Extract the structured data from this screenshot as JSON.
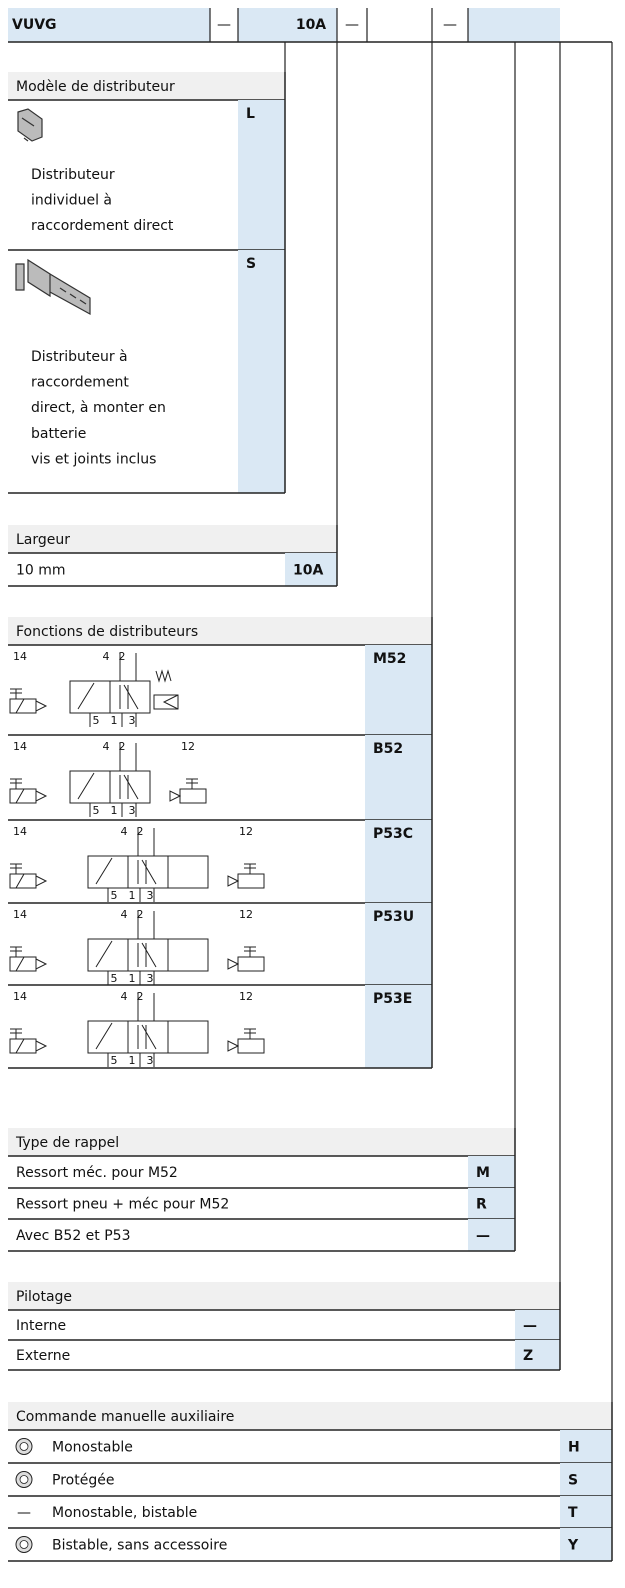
{
  "header": {
    "cells": [
      "VUVG",
      "—",
      "10A",
      "—",
      "—"
    ]
  },
  "sections": [
    {
      "title": "Modèle de distributeur",
      "rows": [
        {
          "lines": [
            "Distributeur",
            "individuel à",
            "raccordement direct"
          ],
          "code": "L"
        },
        {
          "lines": [
            "Distributeur à",
            "raccordement",
            "direct, à monter en",
            "batterie",
            "vis et joints inclus"
          ],
          "code": "S"
        }
      ]
    },
    {
      "title": "Largeur",
      "rows": [
        {
          "label": "10 mm",
          "code": "10A"
        }
      ]
    },
    {
      "title": "Fonctions de distributeurs",
      "rows": [
        {
          "symbol": [
            "14",
            "4",
            "2",
            "5",
            "1",
            "3"
          ],
          "code": "M52"
        },
        {
          "symbol": [
            "14",
            "4",
            "2",
            "12",
            "5",
            "1",
            "3"
          ],
          "code": "B52"
        },
        {
          "symbol": [
            "14",
            "4",
            "2",
            "12",
            "5",
            "1",
            "3"
          ],
          "code": "P53C"
        },
        {
          "symbol": [
            "14",
            "4",
            "2",
            "12",
            "5",
            "1",
            "3"
          ],
          "code": "P53U"
        },
        {
          "symbol": [
            "14",
            "4",
            "2",
            "12",
            "5",
            "1",
            "3"
          ],
          "code": "P53E"
        }
      ]
    },
    {
      "title": "Type de rappel",
      "rows": [
        {
          "label": "Ressort méc. pour M52",
          "code": "M"
        },
        {
          "label": "Ressort pneu + méc pour M52",
          "code": "R"
        },
        {
          "label": "Avec B52 et P53",
          "code": "—"
        }
      ]
    },
    {
      "title": "Pilotage",
      "rows": [
        {
          "label": "Interne",
          "code": "—"
        },
        {
          "label": "Externe",
          "code": "Z"
        }
      ]
    },
    {
      "title": "Commande manuelle auxiliaire",
      "rows": [
        {
          "label": "Monostable",
          "code": "H"
        },
        {
          "label": "Protégée",
          "code": "S"
        },
        {
          "icon": "—",
          "label": "Monostable, bistable",
          "code": "T"
        },
        {
          "label": "Bistable, sans accessoire",
          "code": "Y"
        }
      ]
    }
  ]
}
